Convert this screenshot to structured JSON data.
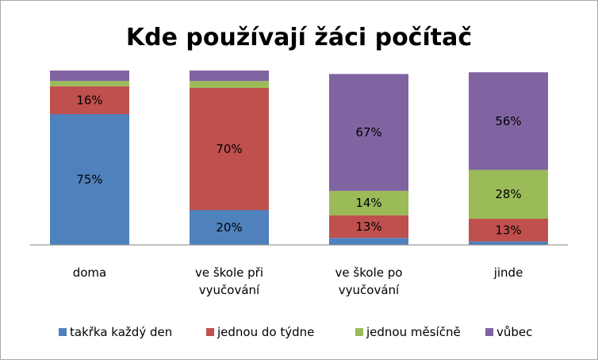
{
  "chart_data": {
    "type": "bar",
    "stacked": true,
    "title": "Kde používají žáci počítač",
    "categories": [
      [
        "doma"
      ],
      [
        "ve škole při",
        "vyučování"
      ],
      [
        "ve škole po",
        "vyučování"
      ],
      [
        "jinde"
      ]
    ],
    "series": [
      {
        "name": "takřka každý den",
        "color": "#4f81bd",
        "values": [
          75,
          20,
          4,
          2
        ]
      },
      {
        "name": "jednou do týdne",
        "color": "#c0504d",
        "values": [
          16,
          70,
          13,
          13
        ]
      },
      {
        "name": "jednou měsíčně",
        "color": "#9bbb59",
        "values": [
          3,
          4,
          14,
          28
        ]
      },
      {
        "name": "vůbec",
        "color": "#8064a2",
        "values": [
          6,
          6,
          67,
          56
        ]
      }
    ],
    "data_labels": [
      [
        "75%",
        "20%",
        "",
        ""
      ],
      [
        "16%",
        "70%",
        "13%",
        "13%"
      ],
      [
        "",
        "",
        "14%",
        "28%"
      ],
      [
        "",
        "",
        "67%",
        "56%"
      ]
    ],
    "ylim": [
      0,
      100
    ],
    "grid": false,
    "legend_position": "bottom"
  }
}
